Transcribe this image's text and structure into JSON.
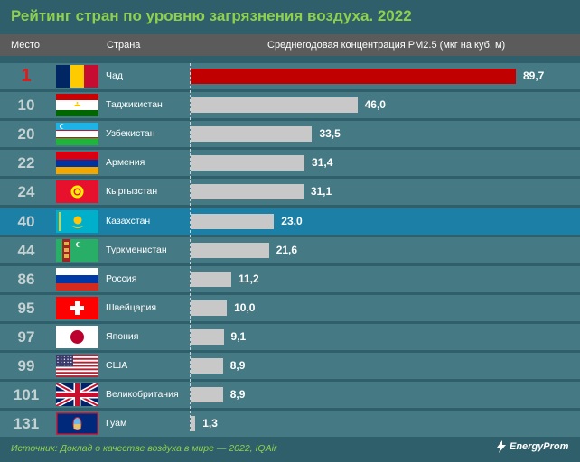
{
  "title": "Рейтинг стран по уровню загрязнения воздуха. 2022",
  "header": {
    "rank": "Место",
    "country": "Страна",
    "value": "Среднегодовая концентрация PM2.5 (мкг на куб. м)"
  },
  "colors": {
    "background": "#2f5f6b",
    "row": "#457983",
    "highlight_row": "#1b7fa6",
    "bar": "#c8c8c8",
    "first_bar": "#c00000",
    "title": "#8fd14f"
  },
  "chart_data": {
    "type": "bar",
    "orientation": "horizontal",
    "title": "Рейтинг стран по уровню загрязнения воздуха. 2022",
    "xlabel": "Среднегодовая концентрация PM2.5 (мкг на куб. м)",
    "xlim": [
      0,
      89.7
    ],
    "categories": [
      "Чад",
      "Таджикистан",
      "Узбекистан",
      "Армения",
      "Кыргызстан",
      "Казахстан",
      "Туркменистан",
      "Россия",
      "Швейцария",
      "Япония",
      "США",
      "Великобритания",
      "Гуам"
    ],
    "ranks": [
      "1",
      "10",
      "20",
      "22",
      "24",
      "40",
      "44",
      "86",
      "95",
      "97",
      "99",
      "101",
      "131"
    ],
    "values": [
      89.7,
      46.0,
      33.5,
      31.4,
      31.1,
      23.0,
      21.6,
      11.2,
      10.0,
      9.1,
      8.9,
      8.9,
      1.3
    ],
    "value_labels": [
      "89,7",
      "46,0",
      "33,5",
      "31,4",
      "31,1",
      "23,0",
      "21,6",
      "11,2",
      "10,0",
      "9,1",
      "8,9",
      "8,9",
      "1,3"
    ],
    "flags": [
      "chad-flag-icon",
      "tajikistan-flag-icon",
      "uzbekistan-flag-icon",
      "armenia-flag-icon",
      "kyrgyzstan-flag-icon",
      "kazakhstan-flag-icon",
      "turkmenistan-flag-icon",
      "russia-flag-icon",
      "switzerland-flag-icon",
      "japan-flag-icon",
      "usa-flag-icon",
      "uk-flag-icon",
      "guam-flag-icon"
    ],
    "highlighted": "Казахстан"
  },
  "footer": {
    "source": "Источник: Доклад о качестве воздуха в мире — 2022, IQAir",
    "logo": "EnergyProm"
  }
}
